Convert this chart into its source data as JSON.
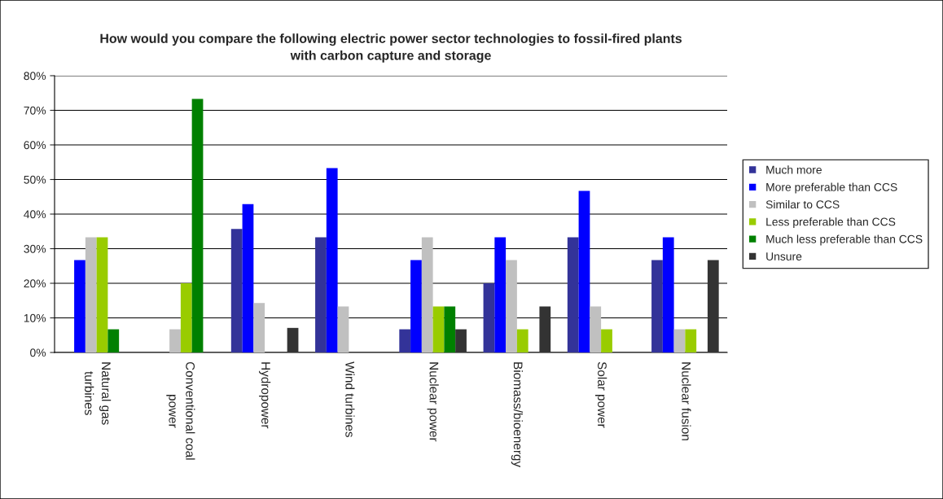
{
  "chart_data": {
    "type": "bar",
    "title": "How would you compare the following electric power sector technologies to fossil-fired plants\nwith carbon capture and storage",
    "categories": [
      "Natural gas\nturbines",
      "Conventional coal\npower",
      "Hydropower",
      "Wind turbines",
      "Nuclear power",
      "Biomass/bioenergy",
      "Solar power",
      "Nuclear fusion"
    ],
    "series": [
      {
        "name": "Much more",
        "color": "#333399",
        "values": [
          0,
          0,
          35.7,
          33.3,
          6.7,
          20,
          33.3,
          26.7
        ]
      },
      {
        "name": "More preferable than CCS",
        "color": "#0000ff",
        "values": [
          26.7,
          0,
          42.9,
          53.3,
          26.7,
          33.3,
          46.7,
          33.3
        ]
      },
      {
        "name": "Similar to CCS",
        "color": "#c0c0c0",
        "values": [
          33.3,
          6.7,
          14.3,
          13.3,
          33.3,
          26.7,
          13.3,
          6.7
        ]
      },
      {
        "name": "Less preferable than CCS",
        "color": "#99cc00",
        "values": [
          33.3,
          20,
          0,
          0,
          13.3,
          6.7,
          6.7,
          6.7
        ]
      },
      {
        "name": "Much less preferable than CCS",
        "color": "#008000",
        "values": [
          6.7,
          73.3,
          0,
          0,
          13.3,
          0,
          0,
          0
        ]
      },
      {
        "name": "Unsure",
        "color": "#333333",
        "values": [
          0,
          0,
          7.1,
          0,
          6.7,
          13.3,
          0,
          26.7
        ]
      }
    ],
    "ylim": [
      0,
      80
    ],
    "yticks": [
      {
        "value": 0,
        "label": "0%"
      },
      {
        "value": 10,
        "label": "10%"
      },
      {
        "value": 20,
        "label": "20%"
      },
      {
        "value": 30,
        "label": "30%"
      },
      {
        "value": 40,
        "label": "40%"
      },
      {
        "value": 50,
        "label": "50%"
      },
      {
        "value": 60,
        "label": "60%"
      },
      {
        "value": 70,
        "label": "70%"
      },
      {
        "value": 80,
        "label": "80%"
      }
    ],
    "grid": "y",
    "legend": "right"
  }
}
